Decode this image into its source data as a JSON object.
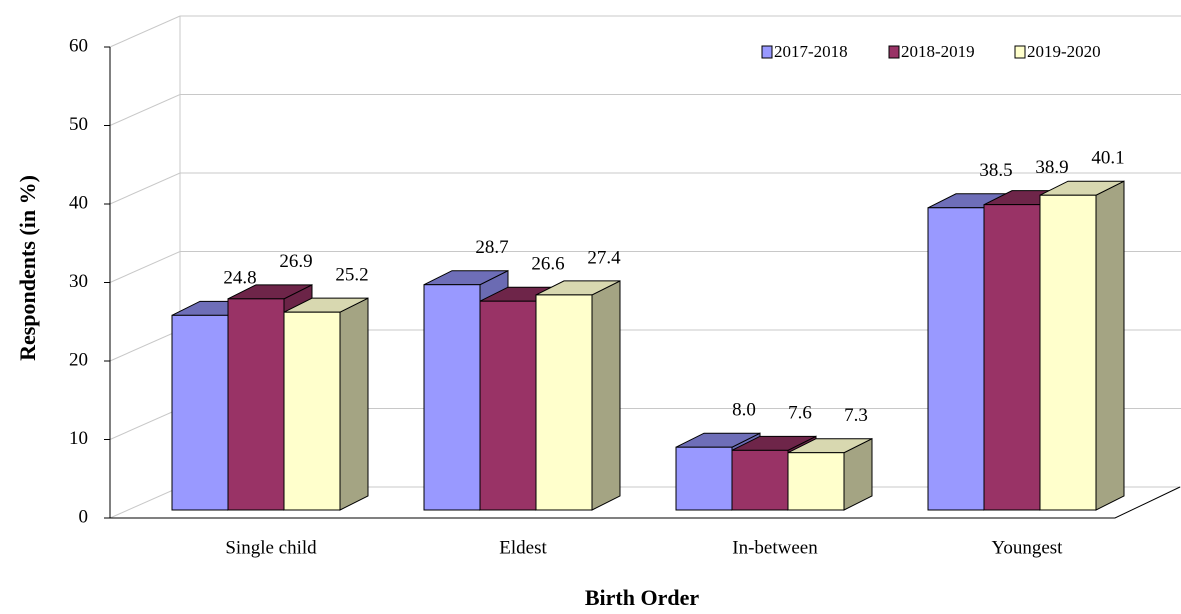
{
  "chart_data": {
    "type": "bar3d",
    "x_label": "Birth Order",
    "y_label": "Respondents (in %)",
    "categories": [
      "Single child",
      "Eldest",
      "In-between",
      "Youngest"
    ],
    "series": [
      {
        "name": "2017-2018",
        "color": "#9999ff",
        "values": [
          24.8,
          28.7,
          8.0,
          38.5
        ],
        "value_labels": [
          "24.8",
          "28.7",
          "8.0",
          "38.5"
        ]
      },
      {
        "name": "2018-2019",
        "color": "#993366",
        "values": [
          26.9,
          26.6,
          7.6,
          38.9
        ]
      },
      {
        "name": "2019-2020",
        "color": "#ffffcc",
        "values": [
          25.2,
          27.4,
          7.3,
          40.1
        ]
      }
    ],
    "ylim": [
      0,
      60
    ],
    "yticks": [
      0,
      10,
      20,
      30,
      40,
      50,
      60
    ],
    "grid": true,
    "legend": "top-right"
  }
}
